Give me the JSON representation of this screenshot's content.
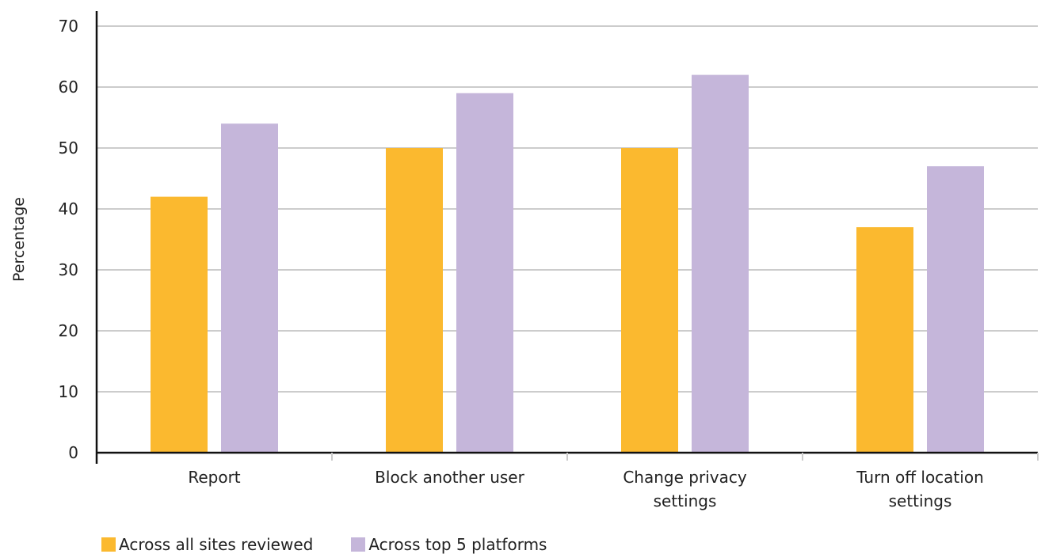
{
  "chart_data": {
    "type": "bar",
    "ylabel": "Percentage",
    "xlabel": "",
    "ylim": [
      0,
      70
    ],
    "yticks": [
      0,
      10,
      20,
      30,
      40,
      50,
      60,
      70
    ],
    "grid": true,
    "legend_position": "bottom-left",
    "categories": [
      [
        "Report"
      ],
      [
        "Block another user"
      ],
      [
        "Change privacy",
        "settings"
      ],
      [
        "Turn off location",
        "settings"
      ]
    ],
    "series": [
      {
        "name": "Across all sites reviewed",
        "color": "#FBB92F",
        "values": [
          42,
          50,
          50,
          37
        ]
      },
      {
        "name": "Across top 5 platforms",
        "color": "#C5B6DA",
        "values": [
          54,
          59,
          62,
          47
        ]
      }
    ]
  }
}
